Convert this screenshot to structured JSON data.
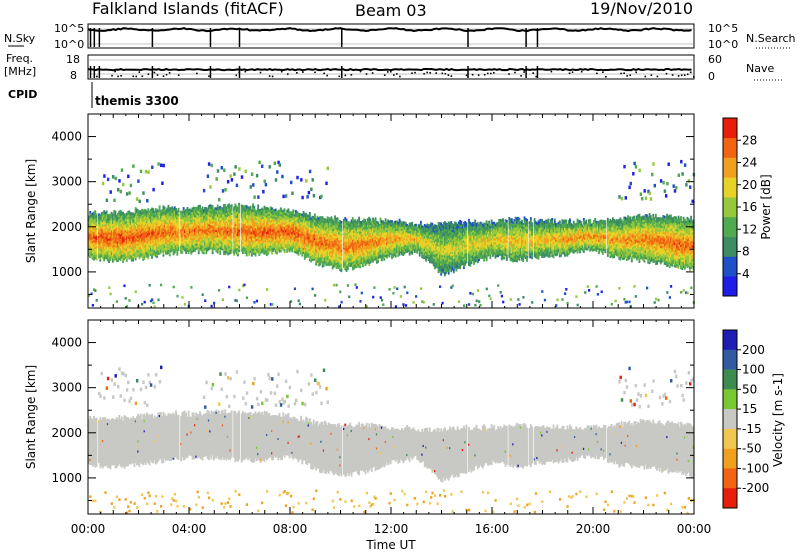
{
  "header": {
    "station": "Falkland Islands (fitACF)",
    "beam": "Beam 03",
    "date": "19/Nov/2010"
  },
  "noise_panel": {
    "left_label": "N.Sky",
    "left_ticks": [
      "10^5",
      "10^0"
    ],
    "right_label": "N.Search",
    "right_ticks": [
      "10^5",
      "10^0"
    ]
  },
  "freq_panel": {
    "left_label_1": "Freq.",
    "left_label_2": "[MHz]",
    "left_ticks": [
      "18",
      "8"
    ],
    "right_label": "Nave",
    "right_ticks": [
      "60",
      "0"
    ]
  },
  "cpid_panel": {
    "label": "CPID",
    "program": "themis 3300"
  },
  "colors": {
    "power": [
      "#1e1ee6",
      "#1e50c8",
      "#3c8c64",
      "#50aa50",
      "#96c83c",
      "#e6d228",
      "#f0a01e",
      "#f06414",
      "#e61e0a"
    ],
    "velocity": [
      "#e61e0a",
      "#f06414",
      "#f0a01e",
      "#f0c850",
      "#c8c8c4",
      "#78c832",
      "#3c8c50",
      "#325aa0",
      "#1e1eb4"
    ],
    "ground_scatter": "#c8c8c4"
  },
  "chart_data": [
    {
      "type": "heatmap",
      "name": "power",
      "ylabel": "Slant Range [km]",
      "xlabel": "",
      "x_ticks": [
        "00:00",
        "04:00",
        "08:00",
        "12:00",
        "16:00",
        "20:00",
        "00:00"
      ],
      "xlim_hours": [
        0,
        24
      ],
      "ylim": [
        200,
        4500
      ],
      "y_ticks": [
        1000,
        2000,
        3000,
        4000
      ],
      "colorbar": {
        "label": "Power [dB]",
        "ticks": [
          4,
          8,
          12,
          16,
          20,
          24,
          28
        ],
        "range": [
          0,
          32
        ]
      },
      "scatter_band": {
        "hours": [
          0,
          1,
          2,
          3,
          4,
          5,
          6,
          7,
          8,
          9,
          10,
          11,
          12,
          13,
          14,
          15,
          16,
          17,
          18,
          19,
          20,
          21,
          22,
          23,
          24
        ],
        "upper_km": [
          2300,
          2300,
          2350,
          2400,
          2400,
          2450,
          2450,
          2400,
          2350,
          2200,
          2150,
          2150,
          2100,
          2050,
          2050,
          2100,
          2100,
          2150,
          2100,
          2100,
          2100,
          2150,
          2250,
          2200,
          2150
        ],
        "lower_km": [
          1300,
          1250,
          1300,
          1400,
          1450,
          1450,
          1400,
          1400,
          1500,
          1200,
          1050,
          1150,
          1350,
          1450,
          950,
          1150,
          1350,
          1250,
          1350,
          1400,
          1500,
          1300,
          1250,
          1150,
          1050
        ],
        "peak_db": [
          27,
          28,
          28,
          27,
          26,
          26,
          27,
          28,
          28,
          27,
          26,
          26,
          24,
          22,
          18,
          20,
          22,
          22,
          22,
          24,
          25,
          24,
          26,
          27,
          27
        ]
      }
    },
    {
      "type": "heatmap",
      "name": "velocity",
      "ylabel": "Slant Range [km]",
      "xlabel": "Time UT",
      "x_ticks": [
        "00:00",
        "04:00",
        "08:00",
        "12:00",
        "16:00",
        "20:00",
        "00:00"
      ],
      "xlim_hours": [
        0,
        24
      ],
      "ylim": [
        200,
        4500
      ],
      "y_ticks": [
        1000,
        2000,
        3000,
        4000
      ],
      "colorbar": {
        "label": "Velocity [m s-1]",
        "ticks": [
          200,
          100,
          50,
          15,
          -15,
          -50,
          -100,
          -200
        ],
        "range": [
          -250,
          250
        ]
      },
      "ground_scatter_note": "grey = ground scatter"
    }
  ]
}
